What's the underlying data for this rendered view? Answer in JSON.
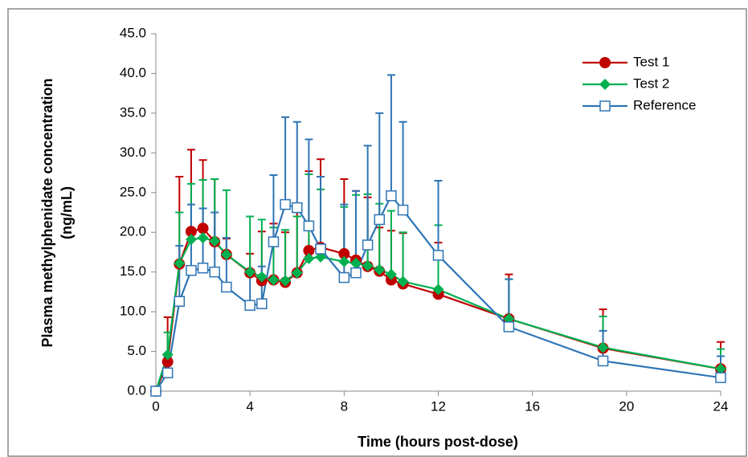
{
  "chart_data": {
    "type": "line",
    "x_label": "Time (hours post-dose)",
    "y_label": [
      "Plasma methylphenidate concentration",
      "(ng/mL)"
    ],
    "x": [
      0,
      0.5,
      1,
      1.5,
      2,
      2.5,
      3,
      4,
      4.5,
      5,
      5.5,
      6,
      6.5,
      7,
      8,
      8.5,
      9,
      9.5,
      10,
      10.5,
      12,
      15,
      19,
      24
    ],
    "xlim": [
      0,
      24
    ],
    "xticks": [
      0,
      4,
      8,
      12,
      16,
      20,
      24
    ],
    "ylim": [
      0,
      45
    ],
    "yticks": [
      {
        "value": 0,
        "label": "0.0"
      },
      {
        "value": 5,
        "label": "5.0"
      },
      {
        "value": 10,
        "label": "10.0"
      },
      {
        "value": 15,
        "label": "15.0"
      },
      {
        "value": 20,
        "label": "20.0"
      },
      {
        "value": 25,
        "label": "25.0"
      },
      {
        "value": 30,
        "label": "30.0"
      },
      {
        "value": 35,
        "label": "35.0"
      },
      {
        "value": 40,
        "label": "40.0"
      },
      {
        "value": 45,
        "label": "45.0"
      }
    ],
    "legend": "upper right",
    "series": [
      {
        "name": "Test 1",
        "color": "#c00000",
        "marker": "circle",
        "values": [
          0,
          3.7,
          16.0,
          20.1,
          20.5,
          18.8,
          17.2,
          14.9,
          13.9,
          14.0,
          13.7,
          14.9,
          17.7,
          18.1,
          17.3,
          16.5,
          15.7,
          15.1,
          14.0,
          13.5,
          12.2,
          9.1,
          5.4,
          2.8
        ],
        "errors": [
          0,
          5.6,
          11.0,
          10.3,
          8.6,
          7.9,
          2.0,
          2.4,
          6.2,
          7.1,
          6.3,
          8.5,
          10.0,
          11.1,
          9.4,
          8.7,
          8.7,
          5.5,
          6.2,
          6.4,
          6.5,
          5.6,
          4.9,
          3.4
        ]
      },
      {
        "name": "Test 2",
        "color": "#00b050",
        "marker": "diamond",
        "values": [
          0,
          4.6,
          16.1,
          19.1,
          19.3,
          18.9,
          17.2,
          15.0,
          14.4,
          14.0,
          13.9,
          14.9,
          16.7,
          16.9,
          16.3,
          16.1,
          15.8,
          15.3,
          14.7,
          13.8,
          12.8,
          9.1,
          5.5,
          2.8
        ],
        "errors": [
          0,
          2.8,
          6.4,
          7.0,
          7.3,
          7.8,
          8.1,
          7.0,
          7.2,
          6.6,
          6.4,
          7.1,
          10.6,
          8.5,
          6.9,
          8.6,
          9.0,
          8.3,
          8.0,
          6.2,
          8.1,
          5.0,
          3.9,
          2.5
        ]
      },
      {
        "name": "Reference",
        "color": "#2e75b6",
        "marker": "square",
        "values": [
          0,
          2.3,
          11.3,
          15.2,
          15.5,
          15.0,
          13.1,
          10.8,
          11.0,
          18.8,
          23.5,
          23.1,
          20.8,
          17.9,
          14.3,
          14.9,
          18.4,
          21.6,
          24.6,
          22.8,
          17.1,
          8.1,
          3.8,
          1.7
        ],
        "errors": [
          0,
          2.0,
          7.0,
          8.3,
          7.5,
          7.5,
          6.2,
          3.9,
          4.7,
          8.4,
          11.0,
          10.8,
          10.9,
          9.1,
          9.2,
          10.3,
          12.5,
          13.4,
          15.2,
          11.1,
          9.4,
          6.0,
          3.8,
          2.7
        ]
      }
    ]
  }
}
